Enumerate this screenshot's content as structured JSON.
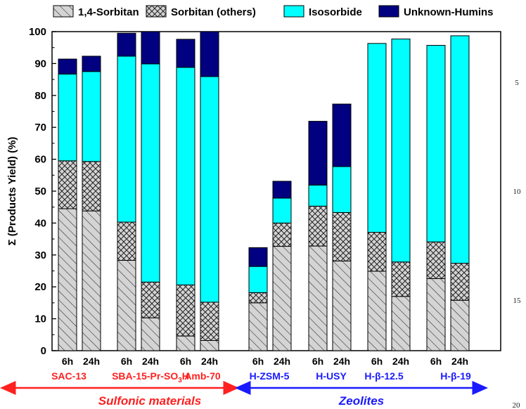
{
  "chart_data": {
    "type": "bar",
    "stacked": true,
    "ylabel": "Σ (Products Yield) (%)",
    "ylim": [
      0,
      100
    ],
    "yticks": [
      0,
      10,
      20,
      30,
      40,
      50,
      60,
      70,
      80,
      90,
      100
    ],
    "legend": {
      "placement": "top",
      "entries": [
        {
          "name": "1,4-Sorbitan",
          "pattern": "diagonal-hatch"
        },
        {
          "name": "Sorbitan (others)",
          "pattern": "cross-hatch"
        },
        {
          "name": "Isosorbide",
          "color": "#00ffff"
        },
        {
          "name": "Unknown-Humins",
          "color": "#000080"
        }
      ]
    },
    "categories": [
      {
        "catalyst": "SAC-13",
        "time": "6h",
        "values": [
          44.5,
          15,
          27.2,
          4.7
        ]
      },
      {
        "catalyst": "SAC-13",
        "time": "24h",
        "values": [
          43.8,
          15.5,
          28.2,
          4.8
        ]
      },
      {
        "catalyst": "SBA-15-Pr-SO3H",
        "time": "6h",
        "values": [
          28.3,
          12,
          52,
          7.2
        ]
      },
      {
        "catalyst": "SBA-15-Pr-SO3H",
        "time": "24h",
        "values": [
          10.3,
          11.2,
          68.4,
          10.1
        ]
      },
      {
        "catalyst": "Amb-70",
        "time": "6h",
        "values": [
          4.6,
          16,
          68.2,
          8.8
        ]
      },
      {
        "catalyst": "Amb-70",
        "time": "24h",
        "values": [
          3.2,
          12,
          70.7,
          14.1
        ]
      },
      {
        "catalyst": "H-ZSM-5",
        "time": "6h",
        "values": [
          15,
          3.2,
          8.2,
          5.9
        ]
      },
      {
        "catalyst": "H-ZSM-5",
        "time": "24h",
        "values": [
          32.7,
          7.3,
          7.8,
          5.3
        ]
      },
      {
        "catalyst": "H-USY",
        "time": "6h",
        "values": [
          32.8,
          12.5,
          6.6,
          20
        ]
      },
      {
        "catalyst": "H-USY",
        "time": "24h",
        "values": [
          28.1,
          15.2,
          14.4,
          19.6
        ]
      },
      {
        "catalyst": "H-β-12.5",
        "time": "6h",
        "values": [
          24.9,
          12.2,
          59.2,
          0
        ]
      },
      {
        "catalyst": "H-β-12.5",
        "time": "24h",
        "values": [
          17,
          10.8,
          69.9,
          0
        ]
      },
      {
        "catalyst": "H-β-19",
        "time": "6h",
        "values": [
          22.6,
          11.5,
          61.6,
          0
        ]
      },
      {
        "catalyst": "H-β-19",
        "time": "24h",
        "values": [
          15.8,
          11.6,
          71.3,
          0
        ]
      }
    ],
    "catalyst_labels": [
      {
        "text": "SAC-13",
        "group": "Sulfonic materials"
      },
      {
        "text": "SBA-15-Pr-SO",
        "sub": "3",
        "text_after": "H",
        "group": "Sulfonic materials"
      },
      {
        "text": "Amb-70",
        "group": "Sulfonic materials"
      },
      {
        "text": "H-ZSM-5",
        "group": "Zeolites"
      },
      {
        "text": "H-USY",
        "group": "Zeolites"
      },
      {
        "text": "H-β-12.5",
        "group": "Zeolites"
      },
      {
        "text": "H-β-19",
        "group": "Zeolites"
      }
    ],
    "groups": [
      {
        "name": "Sulfonic materials",
        "color": "#ff2020"
      },
      {
        "name": "Zeolites",
        "color": "#1a1aff"
      }
    ]
  },
  "margin_numbers": [
    "5",
    "10",
    "15",
    "20"
  ]
}
